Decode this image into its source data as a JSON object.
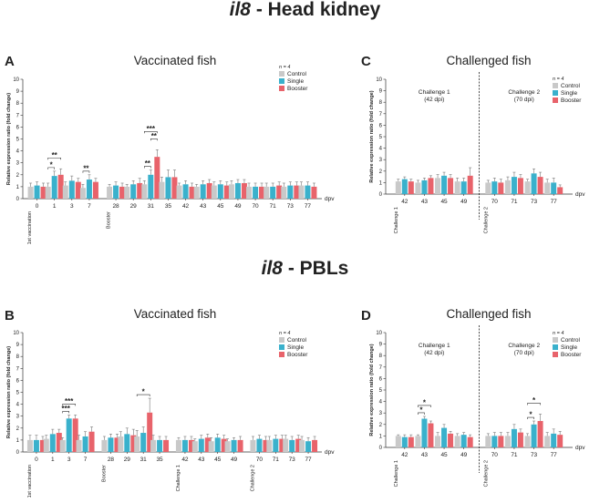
{
  "sections": {
    "top": {
      "gene": "il8",
      "rest": " - Head kidney"
    },
    "bottom": {
      "gene": "il8",
      "rest": " - PBLs"
    }
  },
  "colors": {
    "control": "#c9c9c9",
    "single": "#3ab1cc",
    "booster": "#e8636b",
    "text": "#222222"
  },
  "chart_data": [
    {
      "type": "bar",
      "panel_label": "A",
      "title": "Vaccinated fish",
      "ylabel": "Relative expression ratio (fold change)",
      "xlabel": "dpv",
      "ylim": [
        0,
        10
      ],
      "yticks": [
        "0",
        "1",
        "2",
        "3",
        "4",
        "5",
        "6",
        "7",
        "8",
        "9",
        "10"
      ],
      "n_label": "n = 4",
      "legend": [
        "Control",
        "Single",
        "Booster"
      ],
      "series_names": [
        "Control",
        "Single",
        "Booster"
      ],
      "groups": [
        {
          "label": "0",
          "values": [
            1.0,
            1.1,
            1.0
          ],
          "errors": [
            0.3,
            0.3,
            0.3
          ],
          "marker": "1st vaccination"
        },
        {
          "label": "1",
          "values": [
            1.0,
            1.9,
            2.0
          ],
          "errors": [
            0.3,
            0.4,
            0.5
          ]
        },
        {
          "label": "3",
          "values": [
            1.1,
            1.5,
            1.4
          ],
          "errors": [
            0.3,
            0.4,
            0.3
          ]
        },
        {
          "label": "7",
          "values": [
            0.9,
            1.6,
            1.4
          ],
          "errors": [
            0.3,
            0.4,
            0.3
          ]
        },
        {
          "label": "28",
          "values": [
            1.0,
            1.1,
            1.0
          ],
          "errors": [
            0.2,
            0.3,
            0.3
          ],
          "marker": "Booster"
        },
        {
          "label": "29",
          "values": [
            1.0,
            1.2,
            1.3
          ],
          "errors": [
            0.2,
            0.3,
            0.4
          ]
        },
        {
          "label": "31",
          "values": [
            1.2,
            2.0,
            3.5
          ],
          "errors": [
            0.3,
            0.4,
            0.6
          ]
        },
        {
          "label": "35",
          "values": [
            1.4,
            1.8,
            1.8
          ],
          "errors": [
            0.4,
            0.6,
            0.6
          ]
        },
        {
          "label": "42",
          "values": [
            1.1,
            1.2,
            1.0
          ],
          "errors": [
            0.2,
            0.3,
            0.3
          ]
        },
        {
          "label": "43",
          "values": [
            1.0,
            1.2,
            1.3
          ],
          "errors": [
            0.2,
            0.3,
            0.3
          ]
        },
        {
          "label": "45",
          "values": [
            1.1,
            1.2,
            1.1
          ],
          "errors": [
            0.3,
            0.3,
            0.3
          ]
        },
        {
          "label": "49",
          "values": [
            1.2,
            1.3,
            1.3
          ],
          "errors": [
            0.3,
            0.3,
            0.3
          ]
        },
        {
          "label": "70",
          "values": [
            1.0,
            1.0,
            1.0
          ],
          "errors": [
            0.3,
            0.3,
            0.3
          ]
        },
        {
          "label": "71",
          "values": [
            1.0,
            1.0,
            1.1
          ],
          "errors": [
            0.3,
            0.3,
            0.3
          ]
        },
        {
          "label": "73",
          "values": [
            1.0,
            1.1,
            1.1
          ],
          "errors": [
            0.3,
            0.3,
            0.3
          ]
        },
        {
          "label": "77",
          "values": [
            1.1,
            1.1,
            1.0
          ],
          "errors": [
            0.3,
            0.3,
            0.3
          ]
        }
      ],
      "annotations": [
        {
          "group": "1",
          "pair": [
            0,
            1
          ],
          "text": "*"
        },
        {
          "group": "1",
          "pair": [
            0,
            2
          ],
          "text": "**"
        },
        {
          "group": "7",
          "pair": [
            0,
            1
          ],
          "text": "**"
        },
        {
          "group": "31",
          "pair": [
            0,
            1
          ],
          "text": "**"
        },
        {
          "group": "31",
          "pair": [
            1,
            2
          ],
          "text": "**"
        },
        {
          "group": "31",
          "pair": [
            0,
            2
          ],
          "text": "***"
        }
      ],
      "challenge_labels": []
    },
    {
      "type": "bar",
      "panel_label": "C",
      "title": "Challenged fish",
      "ylabel": "Relative expression ratio (fold change)",
      "xlabel": "dpv",
      "ylim": [
        0,
        10
      ],
      "yticks": [
        "0",
        "1",
        "2",
        "3",
        "4",
        "5",
        "6",
        "7",
        "8",
        "9",
        "10"
      ],
      "n_label": "n = 4",
      "legend": [
        "Control",
        "Single",
        "Booster"
      ],
      "series_names": [
        "Control",
        "Single",
        "Booster"
      ],
      "groups": [
        {
          "label": "42",
          "values": [
            1.1,
            1.3,
            1.1
          ],
          "errors": [
            0.2,
            0.2,
            0.2
          ],
          "marker": "Challenge 1"
        },
        {
          "label": "43",
          "values": [
            1.0,
            1.2,
            1.4
          ],
          "errors": [
            0.2,
            0.2,
            0.2
          ]
        },
        {
          "label": "45",
          "values": [
            1.4,
            1.6,
            1.4
          ],
          "errors": [
            0.3,
            0.3,
            0.3
          ]
        },
        {
          "label": "49",
          "values": [
            1.1,
            1.1,
            1.6
          ],
          "errors": [
            0.3,
            0.3,
            0.7
          ]
        },
        {
          "label": "70",
          "values": [
            1.0,
            1.1,
            1.0
          ],
          "errors": [
            0.2,
            0.3,
            0.3
          ],
          "marker": "Challenge 2"
        },
        {
          "label": "71",
          "values": [
            1.2,
            1.5,
            1.4
          ],
          "errors": [
            0.3,
            0.4,
            0.3
          ]
        },
        {
          "label": "73",
          "values": [
            1.1,
            1.8,
            1.5
          ],
          "errors": [
            0.2,
            0.4,
            0.4
          ]
        },
        {
          "label": "77",
          "values": [
            1.0,
            1.0,
            0.6
          ],
          "errors": [
            0.3,
            0.4,
            0.2
          ]
        }
      ],
      "annotations": [],
      "challenge_labels": [
        {
          "name": "Challenge 1",
          "dpi": "(42 dpi)"
        },
        {
          "name": "Challenge 2",
          "dpi": "(70 dpi)"
        }
      ]
    },
    {
      "type": "bar",
      "panel_label": "B",
      "title": "Vaccinated fish",
      "ylabel": "Relative expression ratio (fold change)",
      "xlabel": "dpv",
      "ylim": [
        0,
        10
      ],
      "yticks": [
        "0",
        "1",
        "2",
        "3",
        "4",
        "5",
        "6",
        "7",
        "8",
        "9",
        "10"
      ],
      "n_label": "n = 4",
      "legend": [
        "Control",
        "Single",
        "Booster"
      ],
      "series_names": [
        "Control",
        "Single",
        "Booster"
      ],
      "groups": [
        {
          "label": "0",
          "values": [
            1.0,
            1.0,
            1.0
          ],
          "errors": [
            0.4,
            0.4,
            0.3
          ],
          "marker": "1st vaccination"
        },
        {
          "label": "1",
          "values": [
            1.1,
            1.5,
            1.6
          ],
          "errors": [
            0.3,
            0.4,
            0.3
          ]
        },
        {
          "label": "3",
          "values": [
            1.0,
            2.8,
            2.8
          ],
          "errors": [
            0.2,
            0.3,
            0.3
          ]
        },
        {
          "label": "7",
          "values": [
            1.0,
            1.3,
            1.7
          ],
          "errors": [
            0.4,
            0.4,
            0.4
          ]
        },
        {
          "label": "28",
          "values": [
            1.0,
            1.2,
            1.2
          ],
          "errors": [
            0.3,
            0.3,
            0.3
          ],
          "marker": "Booster"
        },
        {
          "label": "29",
          "values": [
            1.3,
            1.5,
            1.4
          ],
          "errors": [
            0.4,
            0.5,
            0.5
          ]
        },
        {
          "label": "31",
          "values": [
            1.3,
            1.6,
            3.3
          ],
          "errors": [
            0.5,
            0.5,
            1.2
          ]
        },
        {
          "label": "35",
          "values": [
            1.0,
            1.0,
            1.0
          ],
          "errors": [
            0.4,
            0.3,
            0.3
          ]
        },
        {
          "label": "42",
          "values": [
            1.0,
            1.0,
            1.0
          ],
          "errors": [
            0.2,
            0.3,
            0.3
          ],
          "marker": "Challenge 1"
        },
        {
          "label": "43",
          "values": [
            0.9,
            1.1,
            1.2
          ],
          "errors": [
            0.2,
            0.3,
            0.3
          ]
        },
        {
          "label": "45",
          "values": [
            0.9,
            1.2,
            1.1
          ],
          "errors": [
            0.3,
            0.3,
            0.3
          ]
        },
        {
          "label": "49",
          "values": [
            0.9,
            1.0,
            1.0
          ],
          "errors": [
            0.2,
            0.2,
            0.3
          ]
        },
        {
          "label": "70",
          "values": [
            1.0,
            1.1,
            1.0
          ],
          "errors": [
            0.3,
            0.3,
            0.3
          ],
          "marker": "Challenge 2"
        },
        {
          "label": "71",
          "values": [
            1.0,
            1.1,
            1.1
          ],
          "errors": [
            0.3,
            0.3,
            0.3
          ]
        },
        {
          "label": "73",
          "values": [
            1.1,
            1.0,
            1.1
          ],
          "errors": [
            0.3,
            0.3,
            0.3
          ]
        },
        {
          "label": "77",
          "values": [
            1.0,
            0.9,
            1.0
          ],
          "errors": [
            0.3,
            0.3,
            0.3
          ]
        }
      ],
      "annotations": [
        {
          "group": "3",
          "pair": [
            0,
            1
          ],
          "text": "***"
        },
        {
          "group": "3",
          "pair": [
            0,
            2
          ],
          "text": "***"
        },
        {
          "group": "31",
          "pair": [
            0,
            2
          ],
          "text": "*"
        }
      ],
      "challenge_labels": []
    },
    {
      "type": "bar",
      "panel_label": "D",
      "title": "Challenged fish",
      "ylabel": "Relative expression ratio (fold change)",
      "xlabel": "dpv",
      "ylim": [
        0,
        10
      ],
      "yticks": [
        "0",
        "1",
        "2",
        "3",
        "4",
        "5",
        "6",
        "7",
        "8",
        "9",
        "10"
      ],
      "n_label": "n = 4",
      "legend": [
        "Control",
        "Single",
        "Booster"
      ],
      "series_names": [
        "Control",
        "Single",
        "Booster"
      ],
      "groups": [
        {
          "label": "42",
          "values": [
            1.0,
            0.9,
            0.9
          ],
          "errors": [
            0.1,
            0.2,
            0.2
          ],
          "marker": "Challenge 1"
        },
        {
          "label": "43",
          "values": [
            1.0,
            2.5,
            2.1
          ],
          "errors": [
            0.1,
            0.2,
            0.2
          ]
        },
        {
          "label": "45",
          "values": [
            1.0,
            1.7,
            1.2
          ],
          "errors": [
            0.3,
            0.3,
            0.2
          ]
        },
        {
          "label": "49",
          "values": [
            1.0,
            1.1,
            0.9
          ],
          "errors": [
            0.2,
            0.2,
            0.2
          ]
        },
        {
          "label": "70",
          "values": [
            1.0,
            1.0,
            1.0
          ],
          "errors": [
            0.2,
            0.3,
            0.3
          ],
          "marker": "Challenge 2"
        },
        {
          "label": "71",
          "values": [
            1.0,
            1.6,
            1.3
          ],
          "errors": [
            0.3,
            0.4,
            0.3
          ]
        },
        {
          "label": "73",
          "values": [
            1.0,
            2.0,
            2.3
          ],
          "errors": [
            0.2,
            0.3,
            0.6
          ]
        },
        {
          "label": "77",
          "values": [
            1.0,
            1.2,
            1.1
          ],
          "errors": [
            0.3,
            0.4,
            0.3
          ]
        }
      ],
      "annotations": [
        {
          "group": "43",
          "pair": [
            0,
            1
          ],
          "text": "*"
        },
        {
          "group": "43",
          "pair": [
            0,
            2
          ],
          "text": "*"
        },
        {
          "group": "73",
          "pair": [
            0,
            1
          ],
          "text": "*"
        },
        {
          "group": "73",
          "pair": [
            0,
            2
          ],
          "text": "*"
        }
      ],
      "challenge_labels": [
        {
          "name": "Challenge 1",
          "dpi": "(42 dpi)"
        },
        {
          "name": "Challenge 2",
          "dpi": "(70 dpi)"
        }
      ]
    }
  ]
}
